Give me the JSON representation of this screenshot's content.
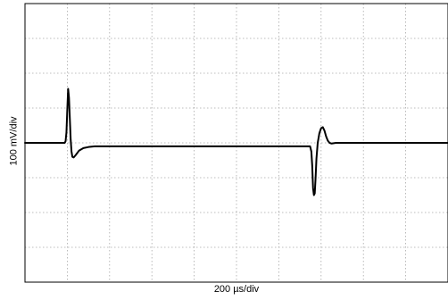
{
  "chart_data": {
    "type": "line",
    "xlabel": "200 µs/div",
    "ylabel": "100 mV/div",
    "grid": true,
    "x_divisions": 10,
    "y_divisions": 8,
    "xlim": [
      0,
      2000
    ],
    "ylim": [
      -400,
      400
    ],
    "series": [
      {
        "x": [
          0,
          188,
          192,
          196,
          200,
          204,
          208,
          212,
          216,
          220,
          224,
          230,
          240,
          256,
          276,
          300,
          330,
          380,
          450,
          600,
          800,
          1000,
          1200,
          1300,
          1348,
          1354,
          1358,
          1362,
          1366,
          1370,
          1374,
          1378,
          1384,
          1392,
          1400,
          1408,
          1416,
          1424,
          1432,
          1440,
          1450,
          1470,
          1490,
          1510,
          1600,
          1800,
          2000
        ],
        "y": [
          0,
          0,
          5,
          30,
          95,
          155,
          130,
          70,
          10,
          -25,
          -40,
          -42,
          -35,
          -22,
          -15,
          -12,
          -10,
          -10,
          -10,
          -10,
          -10,
          -10,
          -10,
          -10,
          -10,
          -25,
          -65,
          -130,
          -150,
          -145,
          -100,
          -45,
          0,
          28,
          42,
          45,
          35,
          18,
          6,
          0,
          -2,
          0,
          0,
          0,
          0,
          0,
          0
        ]
      }
    ],
    "colors": {
      "trace": "#000000",
      "grid": "#a8a8a8",
      "frame": "#000000"
    }
  }
}
